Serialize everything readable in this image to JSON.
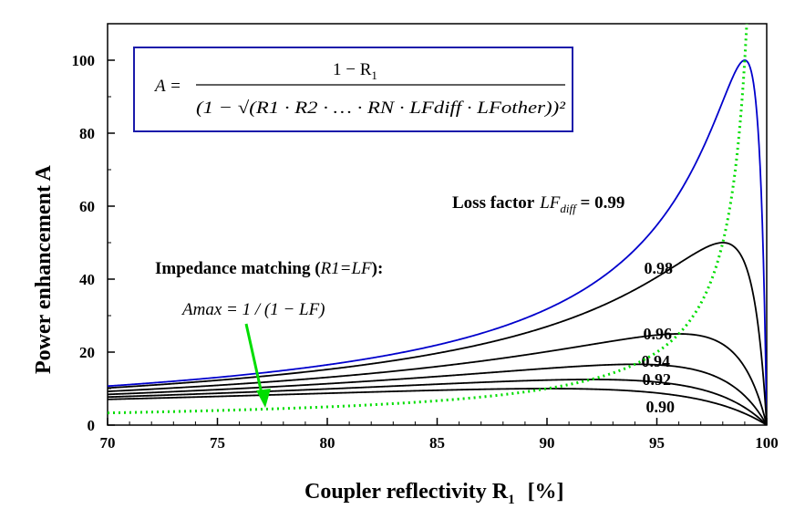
{
  "chart_data": {
    "type": "line",
    "xlabel": "Coupler reflectivity R",
    "xlabel_sub": "1",
    "xlabel_unit": "[%]",
    "ylabel": "Power enhancement A",
    "xlim": [
      70,
      100
    ],
    "ylim": [
      0,
      110
    ],
    "xticks": [
      "70",
      "75",
      "80",
      "85",
      "90",
      "95",
      "100"
    ],
    "yticks": [
      "0",
      "20",
      "40",
      "60",
      "80",
      "100"
    ],
    "grid": false,
    "formula": {
      "lhs": "A = ",
      "numerator": "1 − R",
      "numerator_sub": "1",
      "denominator": "(1 − √(R1 · R2 · … · RN · LFdiff · LFother))²"
    },
    "loss_factor_label": {
      "prefix": "Loss factor",
      "symbol": "LF",
      "symbol_sub": "diff",
      "eq": " = 0.99"
    },
    "impedance_label": {
      "text": "Impedance matching (",
      "math": "R1=LF",
      "close": "):",
      "amax": "Amax = 1 / (1 − LF)"
    },
    "series": [
      {
        "name": "0.99",
        "label": "0.99",
        "color": "#0000cc",
        "lf": 0.99
      },
      {
        "name": "0.98",
        "label": "0.98",
        "color": "#000000",
        "lf": 0.98
      },
      {
        "name": "0.96",
        "label": "0.96",
        "color": "#000000",
        "lf": 0.96
      },
      {
        "name": "0.94",
        "label": "0.94",
        "color": "#000000",
        "lf": 0.94
      },
      {
        "name": "0.92",
        "label": "0.92",
        "color": "#000000",
        "lf": 0.92
      },
      {
        "name": "0.90",
        "label": "0.90",
        "color": "#000000",
        "lf": 0.9
      }
    ],
    "impedance_curve": {
      "name": "Impedance matching",
      "color": "#00dd00",
      "style": "dotted",
      "x": [
        70,
        75,
        80,
        85,
        90,
        92,
        94,
        95,
        96,
        97,
        98,
        98.5,
        99,
        99.1
      ],
      "y": [
        3.33,
        4.0,
        5.0,
        6.67,
        10.0,
        12.5,
        16.67,
        20.0,
        25.0,
        33.33,
        50.0,
        66.67,
        100.0,
        111.1
      ]
    },
    "values": {
      "0.99": {
        "x": [
          70,
          75,
          80,
          85,
          90,
          94,
          96,
          97,
          98,
          98.5,
          99,
          99.5,
          100
        ],
        "y": [
          10.6,
          12.8,
          16.0,
          21.0,
          30.5,
          44.6,
          57.6,
          67.9,
          82.4,
          91.1,
          100.0,
          87.5,
          0
        ]
      },
      "0.98": {
        "x": [
          70,
          75,
          80,
          85,
          90,
          94,
          96,
          97,
          98,
          99,
          100
        ],
        "y": [
          9.6,
          11.4,
          13.9,
          17.8,
          24.1,
          32.0,
          38.6,
          44.1,
          50.0,
          38.5,
          0
        ]
      },
      "0.96": {
        "x": [
          70,
          75,
          80,
          85,
          90,
          94,
          96,
          97,
          98,
          99,
          100
        ],
        "y": [
          8.7,
          10.0,
          11.8,
          14.3,
          18.2,
          22.5,
          25.0,
          23.9,
          20.5,
          12.4,
          0
        ]
      },
      "0.94": {
        "x": [
          70,
          75,
          80,
          85,
          90,
          94,
          96,
          97,
          98,
          99,
          100
        ],
        "y": [
          7.9,
          8.9,
          10.2,
          12.0,
          14.6,
          16.7,
          16.9,
          15.6,
          12.8,
          7.6,
          0
        ]
      },
      "0.92": {
        "x": [
          70,
          75,
          80,
          85,
          90,
          94,
          96,
          97,
          98,
          99,
          100
        ],
        "y": [
          7.3,
          8.0,
          9.0,
          10.4,
          12.1,
          12.8,
          12.3,
          11.2,
          9.2,
          5.4,
          0
        ]
      },
      "0.90": {
        "x": [
          70,
          75,
          80,
          85,
          90,
          94,
          96,
          97,
          98,
          99,
          100
        ],
        "y": [
          6.8,
          7.4,
          8.1,
          9.1,
          10.3,
          10.3,
          9.6,
          8.7,
          7.1,
          4.2,
          0
        ]
      }
    }
  }
}
